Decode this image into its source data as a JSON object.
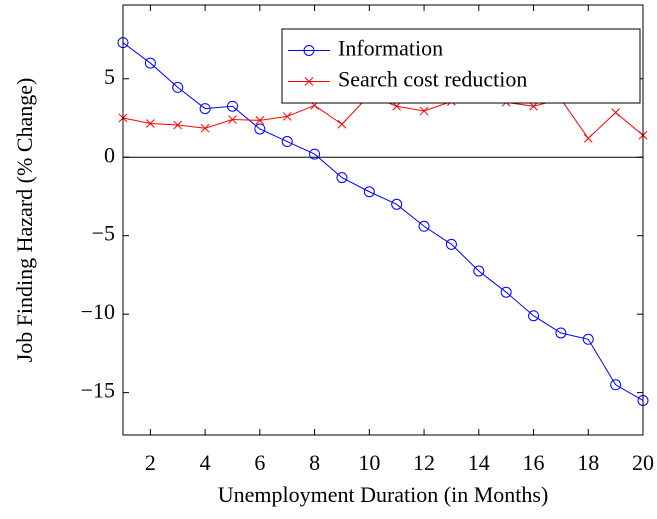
{
  "chart_data": {
    "type": "line",
    "xlabel": "Unemployment Duration (in Months)",
    "ylabel": "Job Finding Hazard (% Change)",
    "x": [
      1,
      2,
      3,
      4,
      5,
      6,
      7,
      8,
      9,
      10,
      11,
      12,
      13,
      14,
      15,
      16,
      17,
      18,
      19,
      20
    ],
    "series": [
      {
        "name": "Information",
        "color": "#0000ff",
        "marker": "o",
        "values": [
          7.3,
          6.0,
          4.45,
          3.1,
          3.25,
          1.8,
          1.0,
          0.2,
          -1.3,
          -2.2,
          -3.0,
          -4.4,
          -5.55,
          -7.25,
          -8.6,
          -10.1,
          -11.2,
          -11.6,
          -14.5,
          -15.5
        ]
      },
      {
        "name": "Search cost reduction",
        "color": "#ff0000",
        "marker": "x",
        "values": [
          2.5,
          2.15,
          2.05,
          1.85,
          2.4,
          2.35,
          2.6,
          3.3,
          2.1,
          3.95,
          3.25,
          2.95,
          3.55,
          3.7,
          3.5,
          3.25,
          3.7,
          1.2,
          2.85,
          1.4
        ]
      }
    ],
    "xlim": [
      1,
      20
    ],
    "ylim": [
      -17.7,
      9.7
    ],
    "xticks": [
      2,
      4,
      6,
      8,
      10,
      12,
      14,
      16,
      18,
      20
    ],
    "yticks": [
      {
        "value": -15,
        "label": "−15"
      },
      {
        "value": -10,
        "label": "−10"
      },
      {
        "value": -5,
        "label": "−5"
      },
      0,
      5
    ],
    "legend": "north east",
    "grid": false
  }
}
